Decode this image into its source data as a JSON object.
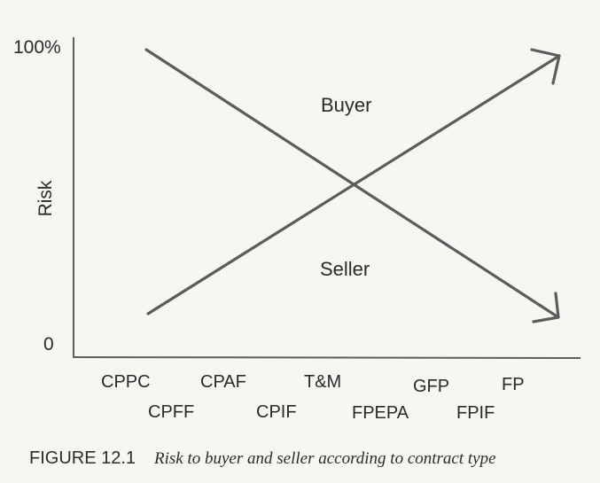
{
  "diagram": {
    "y_axis": {
      "label": "Risk",
      "top_tick": "100%",
      "bottom_tick": "0"
    },
    "regions": {
      "upper": "Buyer",
      "lower": "Seller"
    },
    "contract_types": {
      "row1": [
        "CPPC",
        "CPAF",
        "T&M",
        "GFP",
        "FP"
      ],
      "row2": [
        "CPFF",
        "CPIF",
        "FPEPA",
        "FPIF"
      ]
    },
    "lines": [
      {
        "from": "CPPC high risk",
        "to": "FP low risk",
        "description": "buyer risk decreasing"
      },
      {
        "from": "CPPC low risk",
        "to": "FP high risk",
        "description": "seller risk increasing"
      }
    ]
  },
  "figure": {
    "label": "FIGURE 12.1",
    "caption": "Risk to buyer and seller according to contract type"
  },
  "colors": {
    "line": "#5c5c5c",
    "text": "#2a2a2a",
    "background": "#f7f6f3"
  }
}
